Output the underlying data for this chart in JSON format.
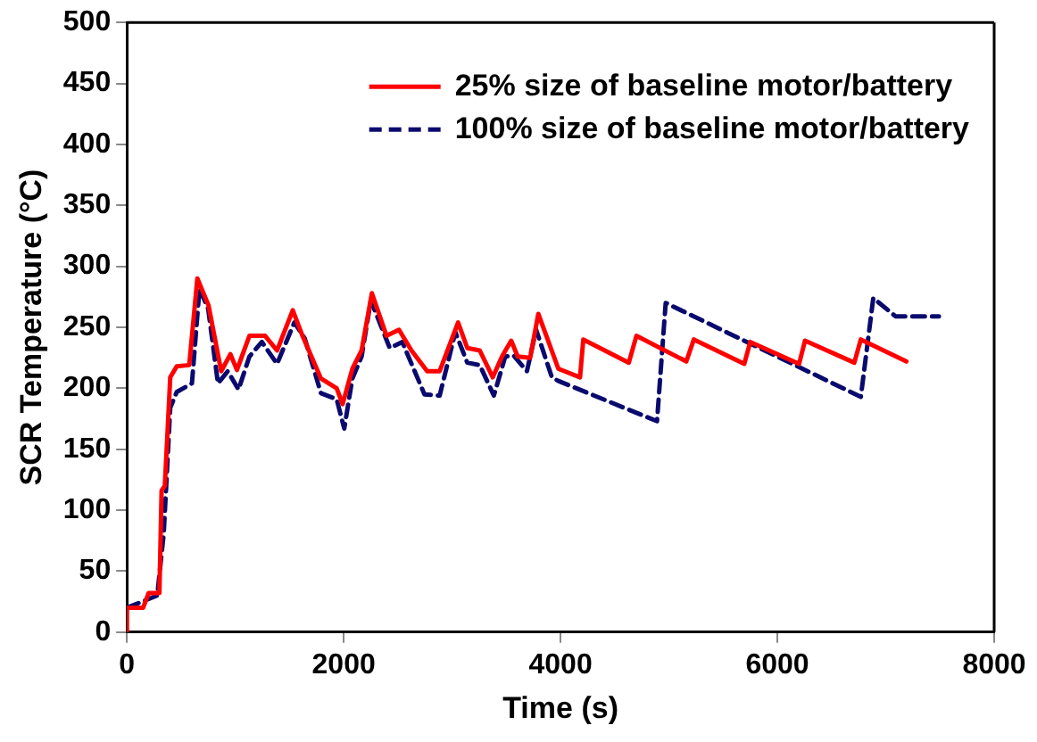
{
  "chart_data": {
    "type": "line",
    "xlabel": "Time (s)",
    "ylabel": "SCR Temperature (°C)",
    "xlim": [
      0,
      8000
    ],
    "xticks": [
      0,
      2000,
      4000,
      6000,
      8000
    ],
    "ylim": [
      0,
      500
    ],
    "yticks": [
      0,
      50,
      100,
      150,
      200,
      250,
      300,
      350,
      400,
      450,
      500
    ],
    "grid": false,
    "legend": "top right",
    "marker": "none",
    "series": [
      {
        "name": "25% size of baseline motor/battery",
        "color": "#ff0000",
        "line_style": "solid",
        "x": [
          0,
          0,
          150,
          200,
          300,
          320,
          350,
          400,
          460,
          575,
          650,
          753,
          870,
          955,
          1015,
          1130,
          1275,
          1385,
          1530,
          1620,
          1790,
          1935,
          1990,
          2080,
          2165,
          2260,
          2395,
          2510,
          2625,
          2770,
          2885,
          3055,
          3140,
          3255,
          3375,
          3460,
          3545,
          3605,
          3720,
          3795,
          3980,
          4180,
          4210,
          4630,
          4700,
          5160,
          5230,
          5695,
          5750,
          6200,
          6255,
          6710,
          6770,
          7190
        ],
        "values": [
          0,
          20,
          20,
          32,
          32,
          116,
          120,
          209,
          218,
          219,
          290,
          268,
          214,
          228,
          215,
          243,
          243,
          231,
          264,
          243,
          208,
          200,
          187,
          216,
          231,
          278,
          243,
          248,
          231,
          214,
          214,
          254,
          233,
          231,
          209,
          226,
          239,
          226,
          225,
          261,
          216,
          209,
          240,
          221,
          243,
          222,
          240,
          220,
          238,
          220,
          239,
          221,
          240,
          222
        ]
      },
      {
        "name": "100% size of baseline motor/battery",
        "color": "#0a0a6e",
        "line_style": "dashed",
        "x": [
          0,
          280,
          340,
          400,
          460,
          600,
          670,
          750,
          840,
          930,
          1030,
          1130,
          1245,
          1385,
          1545,
          1640,
          1790,
          1935,
          2005,
          2080,
          2165,
          2250,
          2425,
          2540,
          2745,
          2885,
          3030,
          3140,
          3255,
          3385,
          3490,
          3565,
          3690,
          3775,
          3920,
          3980,
          4890,
          4970,
          6770,
          6885,
          7090,
          7490
        ],
        "values": [
          20,
          30,
          81,
          184,
          197,
          204,
          282,
          265,
          204,
          214,
          199,
          226,
          238,
          220,
          254,
          241,
          196,
          191,
          167,
          208,
          226,
          272,
          233,
          238,
          195,
          194,
          246,
          221,
          219,
          194,
          226,
          227,
          214,
          248,
          209,
          206,
          173,
          270,
          193,
          274,
          259,
          259
        ]
      }
    ]
  }
}
